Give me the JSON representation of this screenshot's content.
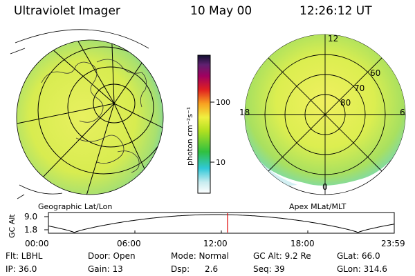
{
  "header": {
    "title": "Ultraviolet Imager",
    "date": "10 May 00",
    "time": "12:26:12 UT"
  },
  "left_panel": {
    "caption": "Geographic Lat/Lon"
  },
  "right_panel": {
    "caption": "Apex MLat/MLT",
    "mlt_labels": {
      "top": "12",
      "left": "18",
      "right": "6",
      "bottom": "0"
    },
    "lat_labels": [
      "60",
      "70",
      "80"
    ]
  },
  "colorbar": {
    "label": "photon cm⁻²s⁻¹",
    "ticks": [
      "100",
      "10"
    ]
  },
  "altitude_plot": {
    "axis_label": "GC Alt",
    "y_ticks": [
      "9.0",
      "1.8"
    ],
    "time_ticks": [
      "00:00",
      "06:00",
      "12:00",
      "18:00",
      "23:59"
    ],
    "current_fraction": 0.518,
    "marker_color": "#e00000"
  },
  "info": {
    "row1": {
      "flt": "Flt: LBHL",
      "door": "Door: Open",
      "mode": "Mode: Normal",
      "gcalt": "GC Alt: 9.2 Re",
      "glat": "GLat: 66.0"
    },
    "row2": {
      "ip": "IP: 36.0",
      "gain": "Gain: 13",
      "dsp_label": "Dsp:",
      "dsp_value": "2.6",
      "seq": "Seq: 39",
      "glon": "GLon: 314.6"
    }
  }
}
